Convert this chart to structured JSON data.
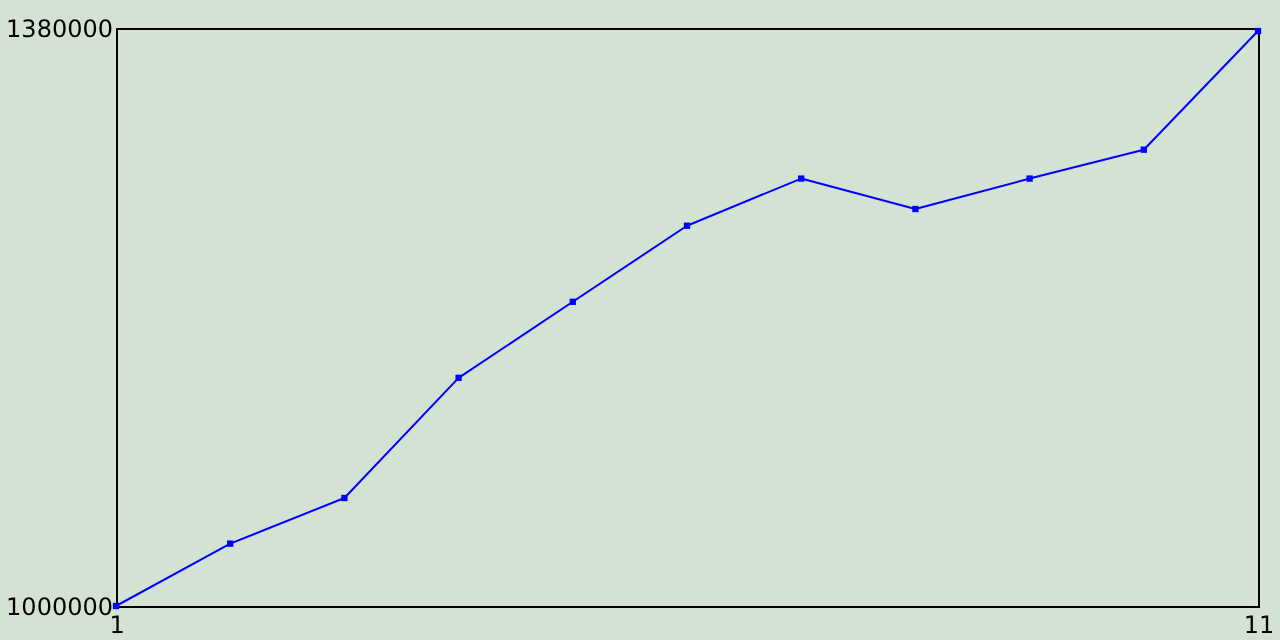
{
  "chart_data": {
    "type": "line",
    "x": [
      1,
      2,
      3,
      4,
      5,
      6,
      7,
      8,
      9,
      10,
      11
    ],
    "series": [
      {
        "color": "#0000ff",
        "values": [
          1000000,
          1041000,
          1071000,
          1150000,
          1200000,
          1250000,
          1281000,
          1261000,
          1281000,
          1300000,
          1378000
        ]
      }
    ],
    "xlim": [
      1,
      11
    ],
    "xticks": [
      1,
      11
    ],
    "ylim": [
      1000000,
      1380000
    ],
    "yticks": [
      1000000,
      1380000
    ],
    "grid": false,
    "marker": "square",
    "line_style": "solid"
  }
}
